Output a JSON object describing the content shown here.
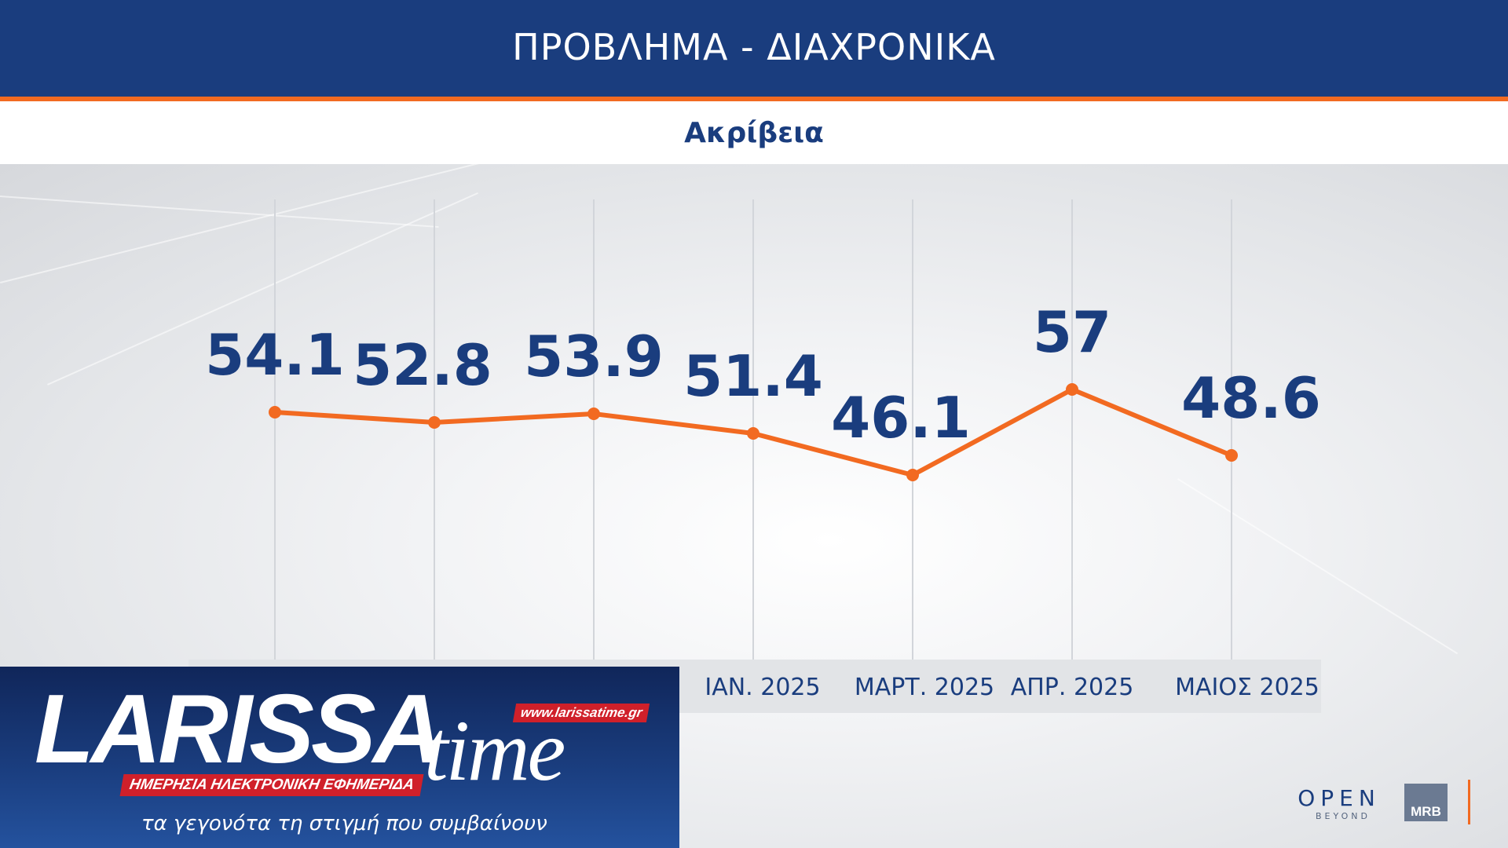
{
  "header": {
    "title": "ΠΡΟΒΛΗΜΑ - ΔΙΑΧΡΟΝΙΚΑ",
    "subtitle": "Ακρίβεια"
  },
  "colors": {
    "header_bg": "#1a3d7e",
    "accent": "#f26a21",
    "label": "#1a3d7e",
    "line": "#f26a21"
  },
  "chart_data": {
    "type": "line",
    "categories": [
      "",
      "",
      "",
      "ΙΑΝ. 2025",
      "ΜΑΡΤ. 2025",
      "ΑΠΡ. 2025",
      "ΜΑΙΟΣ 2025"
    ],
    "series": [
      {
        "values": [
          54.1,
          52.8,
          53.9,
          51.4,
          46.1,
          57,
          48.6
        ]
      }
    ],
    "data_labels": [
      "54.1",
      "52.8",
      "53.9",
      "51.4",
      "46.1",
      "57",
      "48.6"
    ],
    "grid": "vertical",
    "legend": "none"
  },
  "footer": {
    "logo_main": "LARISSA",
    "logo_time": "time",
    "logo_url": "www.larissatime.gr",
    "logo_tagline": "ΗΜΕΡΗΣΙΑ ΗΛΕΚΤΡΟΝΙΚΗ ΕΦΗΜΕΡΙΔΑ",
    "logo_slogan": "τα γεγονότα τη στιγμή που συμβαίνουν",
    "brand_open": "OPEN",
    "brand_beyond": "BEYOND",
    "brand_mrb": "MRB"
  }
}
